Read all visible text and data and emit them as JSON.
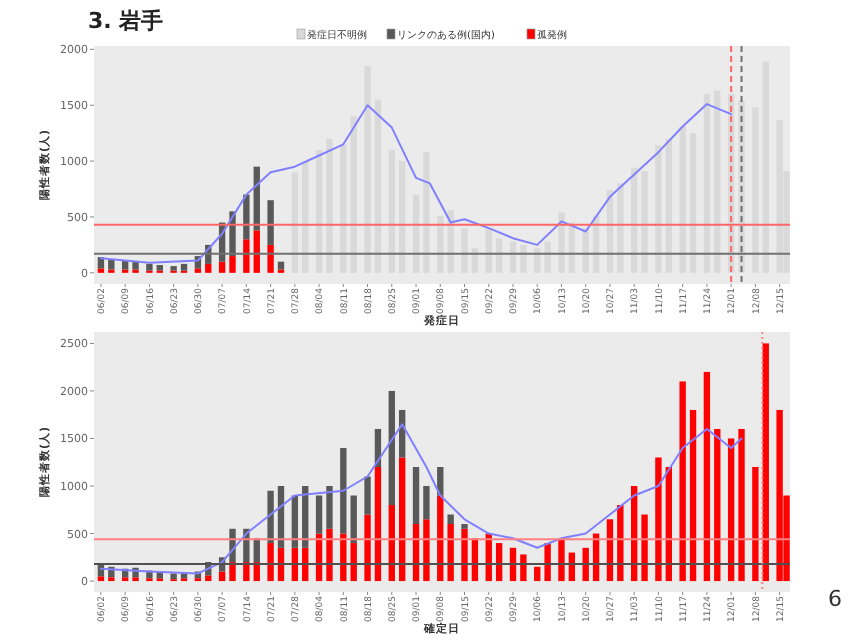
{
  "chart_data": [
    {
      "type": "bar",
      "title": "3. 岩手",
      "xlabel": "発症日",
      "ylabel": "陽性者数(人)",
      "stacked": true,
      "legend": "top",
      "xlim": [
        "--05-31",
        "--12-18"
      ],
      "ylim": [
        -100,
        2030
      ],
      "yticks": [
        0,
        500,
        1000,
        1500,
        2000
      ],
      "xticks": [
        {
          "value": "--06-02",
          "label": "06/02"
        },
        {
          "value": "--06-09",
          "label": "06/09"
        },
        {
          "value": "--06-16",
          "label": "06/16"
        },
        {
          "value": "--06-23",
          "label": "06/23"
        },
        {
          "value": "--06-30",
          "label": "06/30"
        },
        {
          "value": "--07-07",
          "label": "07/07"
        },
        {
          "value": "--07-14",
          "label": "07/14"
        },
        {
          "value": "--07-21",
          "label": "07/21"
        },
        {
          "value": "--07-28",
          "label": "07/28"
        },
        {
          "value": "--08-04",
          "label": "08/04"
        },
        {
          "value": "--08-11",
          "label": "08/11"
        },
        {
          "value": "--08-18",
          "label": "08/18"
        },
        {
          "value": "--08-25",
          "label": "08/25"
        },
        {
          "value": "--09-01",
          "label": "09/01"
        },
        {
          "value": "--09-08",
          "label": "09/08"
        },
        {
          "value": "--09-15",
          "label": "09/15"
        },
        {
          "value": "--09-22",
          "label": "09/22"
        },
        {
          "value": "--09-29",
          "label": "09/29"
        },
        {
          "value": "--10-06",
          "label": "10/06"
        },
        {
          "value": "--10-13",
          "label": "10/13"
        },
        {
          "value": "--10-20",
          "label": "10/20"
        },
        {
          "value": "--10-27",
          "label": "10/27"
        },
        {
          "value": "--11-03",
          "label": "11/03"
        },
        {
          "value": "--11-10",
          "label": "11/10"
        },
        {
          "value": "--11-17",
          "label": "11/17"
        },
        {
          "value": "--11-24",
          "label": "11/24"
        },
        {
          "value": "--12-01",
          "label": "12/01"
        },
        {
          "value": "--12-08",
          "label": "12/08"
        },
        {
          "value": "--12-15",
          "label": "12/15"
        }
      ],
      "x": [
        "--06-02",
        "--06-05",
        "--06-09",
        "--06-12",
        "--06-16",
        "--06-19",
        "--06-23",
        "--06-26",
        "--06-30",
        "--07-03",
        "--07-07",
        "--07-10",
        "--07-14",
        "--07-17",
        "--07-21",
        "--07-24",
        "--07-28",
        "--07-31",
        "--08-04",
        "--08-07",
        "--08-11",
        "--08-14",
        "--08-18",
        "--08-21",
        "--08-25",
        "--08-28",
        "--09-01",
        "--09-04",
        "--09-08",
        "--09-11",
        "--09-15",
        "--09-18",
        "--09-22",
        "--09-25",
        "--09-29",
        "--10-02",
        "--10-06",
        "--10-09",
        "--10-13",
        "--10-16",
        "--10-20",
        "--10-23",
        "--10-27",
        "--10-30",
        "--11-03",
        "--11-06",
        "--11-10",
        "--11-13",
        "--11-17",
        "--11-20",
        "--11-24",
        "--11-27",
        "--12-01",
        "--12-04",
        "--12-08",
        "--12-11",
        "--12-15",
        "--12-17"
      ],
      "series": [
        {
          "name": "孤発例",
          "color": "#ff0000",
          "values": [
            40,
            30,
            30,
            30,
            20,
            20,
            20,
            20,
            40,
            80,
            100,
            150,
            300,
            380,
            250,
            30,
            0,
            0,
            0,
            0,
            0,
            0,
            0,
            0,
            0,
            0,
            0,
            0,
            0,
            0,
            0,
            0,
            0,
            0,
            0,
            0,
            0,
            0,
            0,
            0,
            0,
            0,
            0,
            0,
            0,
            0,
            0,
            0,
            0,
            0,
            0,
            0,
            0,
            0,
            0,
            0,
            0,
            0
          ]
        },
        {
          "name": "リンクのある例(国内)",
          "color": "#595959",
          "values": [
            100,
            90,
            80,
            70,
            60,
            50,
            40,
            60,
            110,
            170,
            350,
            400,
            400,
            570,
            400,
            70,
            0,
            0,
            0,
            0,
            0,
            0,
            0,
            0,
            0,
            0,
            0,
            0,
            0,
            0,
            0,
            0,
            0,
            0,
            0,
            0,
            0,
            0,
            0,
            0,
            0,
            0,
            0,
            0,
            0,
            0,
            0,
            0,
            0,
            0,
            0,
            0,
            0,
            0,
            0,
            0,
            0,
            0
          ]
        },
        {
          "name": "発症日不明例",
          "color": "#d9d9d9",
          "values": [
            0,
            0,
            0,
            0,
            0,
            0,
            0,
            0,
            0,
            0,
            0,
            0,
            0,
            0,
            0,
            0,
            900,
            1000,
            1100,
            1200,
            1150,
            1400,
            1850,
            1550,
            1100,
            1000,
            700,
            1080,
            510,
            560,
            400,
            220,
            400,
            310,
            280,
            250,
            220,
            280,
            540,
            450,
            400,
            510,
            740,
            800,
            940,
            910,
            1140,
            1200,
            1310,
            1250,
            1600,
            1630,
            1600,
            1540,
            1480,
            1890,
            1370,
            910
          ]
        },
        {
          "type": "line",
          "color": "#8080ff",
          "x": [
            "--06-02",
            "--06-16",
            "--06-30",
            "--07-07",
            "--07-14",
            "--07-21",
            "--07-28",
            "--08-04",
            "--08-11",
            "--08-18",
            "--08-25",
            "--09-01",
            "--09-05",
            "--09-11",
            "--09-15",
            "--09-22",
            "--09-29",
            "--10-06",
            "--10-13",
            "--10-20",
            "--10-27",
            "--11-03",
            "--11-10",
            "--11-17",
            "--11-24",
            "--12-01"
          ],
          "values": [
            130,
            90,
            110,
            350,
            700,
            900,
            950,
            1050,
            1150,
            1500,
            1300,
            850,
            800,
            450,
            480,
            400,
            310,
            250,
            460,
            370,
            680,
            880,
            1080,
            1310,
            1510,
            1420
          ]
        }
      ],
      "ref_lines": [
        {
          "axis": "y",
          "value": 430,
          "color": "#ff6666"
        },
        {
          "axis": "y",
          "value": 170,
          "color": "#707070"
        },
        {
          "axis": "x",
          "value": "--12-01",
          "color": "#ff6666",
          "line_style": "dashed"
        },
        {
          "axis": "x",
          "value": "--12-04",
          "color": "#707070",
          "line_style": "dashed"
        }
      ]
    },
    {
      "type": "bar",
      "xlabel": "確定日",
      "ylabel": "陽性者数(人)",
      "stacked": true,
      "annotations": [
        "6"
      ],
      "xlim": [
        "--05-31",
        "--12-18"
      ],
      "ylim": [
        -115,
        2620
      ],
      "yticks": [
        0,
        500,
        1000,
        1500,
        2000,
        2500
      ],
      "xticks": [
        {
          "value": "--06-02",
          "label": "06/02"
        },
        {
          "value": "--06-09",
          "label": "06/09"
        },
        {
          "value": "--06-16",
          "label": "06/16"
        },
        {
          "value": "--06-23",
          "label": "06/23"
        },
        {
          "value": "--06-30",
          "label": "06/30"
        },
        {
          "value": "--07-07",
          "label": "07/07"
        },
        {
          "value": "--07-14",
          "label": "07/14"
        },
        {
          "value": "--07-21",
          "label": "07/21"
        },
        {
          "value": "--07-28",
          "label": "07/28"
        },
        {
          "value": "--08-04",
          "label": "08/04"
        },
        {
          "value": "--08-11",
          "label": "08/11"
        },
        {
          "value": "--08-18",
          "label": "08/18"
        },
        {
          "value": "--08-25",
          "label": "08/25"
        },
        {
          "value": "--09-01",
          "label": "09/01"
        },
        {
          "value": "--09-08",
          "label": "09/08"
        },
        {
          "value": "--09-15",
          "label": "09/15"
        },
        {
          "value": "--09-22",
          "label": "09/22"
        },
        {
          "value": "--09-29",
          "label": "09/29"
        },
        {
          "value": "--10-06",
          "label": "10/06"
        },
        {
          "value": "--10-13",
          "label": "10/13"
        },
        {
          "value": "--10-20",
          "label": "10/20"
        },
        {
          "value": "--10-27",
          "label": "10/27"
        },
        {
          "value": "--11-03",
          "label": "11/03"
        },
        {
          "value": "--11-10",
          "label": "11/10"
        },
        {
          "value": "--11-17",
          "label": "11/17"
        },
        {
          "value": "--11-24",
          "label": "11/24"
        },
        {
          "value": "--12-01",
          "label": "12/01"
        },
        {
          "value": "--12-08",
          "label": "12/08"
        },
        {
          "value": "--12-15",
          "label": "12/15"
        }
      ],
      "x": [
        "--06-02",
        "--06-05",
        "--06-09",
        "--06-12",
        "--06-16",
        "--06-19",
        "--06-23",
        "--06-26",
        "--06-30",
        "--07-03",
        "--07-07",
        "--07-10",
        "--07-14",
        "--07-17",
        "--07-21",
        "--07-24",
        "--07-28",
        "--07-31",
        "--08-04",
        "--08-07",
        "--08-11",
        "--08-14",
        "--08-18",
        "--08-21",
        "--08-25",
        "--08-28",
        "--09-01",
        "--09-04",
        "--09-08",
        "--09-11",
        "--09-15",
        "--09-18",
        "--09-22",
        "--09-25",
        "--09-29",
        "--10-02",
        "--10-06",
        "--10-09",
        "--10-13",
        "--10-16",
        "--10-20",
        "--10-23",
        "--10-27",
        "--10-30",
        "--11-03",
        "--11-06",
        "--11-10",
        "--11-13",
        "--11-17",
        "--11-20",
        "--11-24",
        "--11-27",
        "--12-01",
        "--12-04",
        "--12-08",
        "--12-11",
        "--12-15",
        "--12-17"
      ],
      "series": [
        {
          "color": "#ff0000",
          "values": [
            50,
            40,
            40,
            40,
            30,
            30,
            20,
            30,
            30,
            60,
            100,
            200,
            200,
            200,
            400,
            350,
            350,
            350,
            500,
            550,
            500,
            400,
            700,
            1200,
            800,
            1300,
            600,
            650,
            900,
            600,
            550,
            450,
            500,
            400,
            350,
            280,
            150,
            400,
            450,
            300,
            350,
            500,
            650,
            800,
            1000,
            700,
            1300,
            1200,
            2100,
            1800,
            2200,
            1600,
            1500,
            1600,
            1200,
            2500,
            1800,
            900
          ]
        },
        {
          "color": "#595959",
          "values": [
            120,
            110,
            90,
            100,
            80,
            70,
            60,
            60,
            70,
            140,
            150,
            350,
            350,
            250,
            550,
            650,
            550,
            650,
            400,
            450,
            900,
            500,
            400,
            400,
            1200,
            500,
            600,
            350,
            300,
            100,
            50,
            0,
            0,
            0,
            0,
            0,
            0,
            0,
            0,
            0,
            0,
            0,
            0,
            0,
            0,
            0,
            0,
            0,
            0,
            0,
            0,
            0,
            0,
            0,
            0,
            0,
            0,
            0
          ]
        },
        {
          "type": "line",
          "color": "#8080ff",
          "x": [
            "--06-02",
            "--06-16",
            "--06-30",
            "--07-07",
            "--07-14",
            "--07-21",
            "--07-28",
            "--08-11",
            "--08-18",
            "--08-28",
            "--09-04",
            "--09-08",
            "--09-15",
            "--09-22",
            "--09-29",
            "--10-06",
            "--10-13",
            "--10-20",
            "--10-27",
            "--11-03",
            "--11-10",
            "--11-17",
            "--11-24",
            "--12-01",
            "--12-04"
          ],
          "values": [
            130,
            100,
            80,
            200,
            500,
            700,
            900,
            950,
            1100,
            1650,
            1200,
            900,
            650,
            500,
            450,
            350,
            450,
            500,
            700,
            900,
            1000,
            1400,
            1600,
            1400,
            1500
          ]
        }
      ],
      "ref_lines": [
        {
          "axis": "y",
          "value": 440,
          "color": "#ff8080"
        },
        {
          "axis": "y",
          "value": 180,
          "color": "#505050"
        },
        {
          "axis": "x",
          "value": "--12-10",
          "color": "#ff8080",
          "line_style": "dotted"
        }
      ]
    }
  ]
}
